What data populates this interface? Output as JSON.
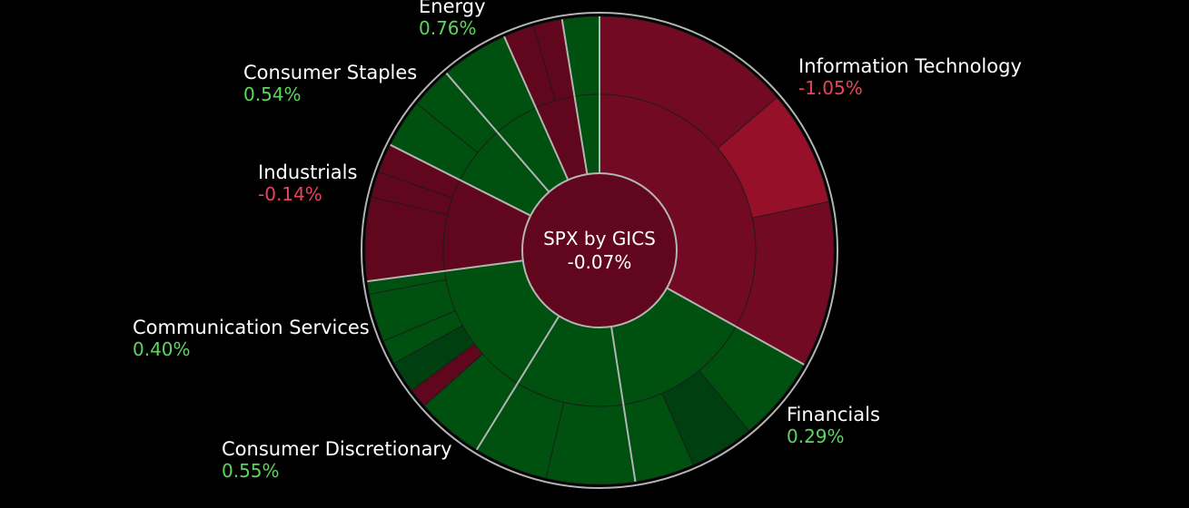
{
  "chart_data": {
    "type": "sunburst",
    "title": "SPX by GICS",
    "title_value": "-0.07%",
    "colors": {
      "positive": "#00500f",
      "negative": "#60061d",
      "negative_medium": "#720a24",
      "negative_strong": "#96102a",
      "positive_dark": "#004010",
      "outline": "#b4b4b4",
      "positive_text": "#5cd65c",
      "negative_text": "#e8445a"
    },
    "sectors": [
      {
        "name": "Information Technology",
        "value_label": "-1.05%",
        "sign": "negative",
        "weight": 29.8,
        "children": [
          {
            "weight": 12.3,
            "sign": "negative",
            "intensity": "medium"
          },
          {
            "weight": 7.2,
            "sign": "negative",
            "intensity": "strong"
          },
          {
            "weight": 10.3,
            "sign": "negative",
            "intensity": "medium"
          }
        ]
      },
      {
        "name": "Financials",
        "value_label": "0.29%",
        "sign": "positive",
        "weight": 13.0,
        "children": [
          {
            "weight": 5.3,
            "sign": "positive",
            "intensity": "normal"
          },
          {
            "weight": 4.0,
            "sign": "positive",
            "intensity": "dark"
          },
          {
            "weight": 3.7,
            "sign": "positive",
            "intensity": "normal"
          }
        ]
      },
      {
        "name": "Consumer Discretionary",
        "value_label": "0.55%",
        "sign": "positive",
        "weight": 10.1,
        "children": [
          {
            "weight": 5.5,
            "sign": "positive",
            "intensity": "normal"
          },
          {
            "weight": 4.6,
            "sign": "positive",
            "intensity": "normal"
          }
        ]
      },
      {
        "name": "Communication Services",
        "value_label": "0.40%",
        "sign": "positive",
        "weight": 12.7,
        "children": [
          {
            "weight": 4.2,
            "sign": "positive",
            "intensity": "normal"
          },
          {
            "weight": 1.2,
            "sign": "negative",
            "intensity": "normal"
          },
          {
            "weight": 2.0,
            "sign": "positive",
            "intensity": "dark"
          },
          {
            "weight": 1.5,
            "sign": "positive",
            "intensity": "normal"
          },
          {
            "weight": 3.0,
            "sign": "positive",
            "intensity": "normal"
          },
          {
            "weight": 0.8,
            "sign": "positive",
            "intensity": "normal"
          }
        ]
      },
      {
        "name": "Industrials",
        "value_label": "-0.14%",
        "sign": "negative",
        "weight": 8.6,
        "children": [
          {
            "weight": 5.2,
            "sign": "negative",
            "intensity": "normal"
          },
          {
            "weight": 1.6,
            "sign": "negative",
            "intensity": "normal"
          },
          {
            "weight": 1.8,
            "sign": "negative",
            "intensity": "normal"
          }
        ]
      },
      {
        "name": "Consumer Staples",
        "value_label": "0.54%",
        "sign": "positive",
        "weight": 5.6,
        "children": [
          {
            "weight": 3.0,
            "sign": "positive",
            "intensity": "normal"
          },
          {
            "weight": 2.6,
            "sign": "positive",
            "intensity": "normal"
          }
        ]
      },
      {
        "name": "Energy",
        "value_label": "0.76%",
        "sign": "positive",
        "weight": 4.2,
        "children": [
          {
            "weight": 4.2,
            "sign": "positive",
            "intensity": "normal"
          }
        ]
      },
      {
        "name": "",
        "value_label": "",
        "sign": "negative",
        "weight": 3.7,
        "children": [
          {
            "weight": 1.9,
            "sign": "negative",
            "intensity": "normal"
          },
          {
            "weight": 1.8,
            "sign": "negative",
            "intensity": "normal"
          }
        ]
      },
      {
        "name": "",
        "value_label": "",
        "sign": "positive",
        "weight": 2.3,
        "children": [
          {
            "weight": 2.3,
            "sign": "positive",
            "intensity": "normal"
          }
        ]
      }
    ]
  }
}
